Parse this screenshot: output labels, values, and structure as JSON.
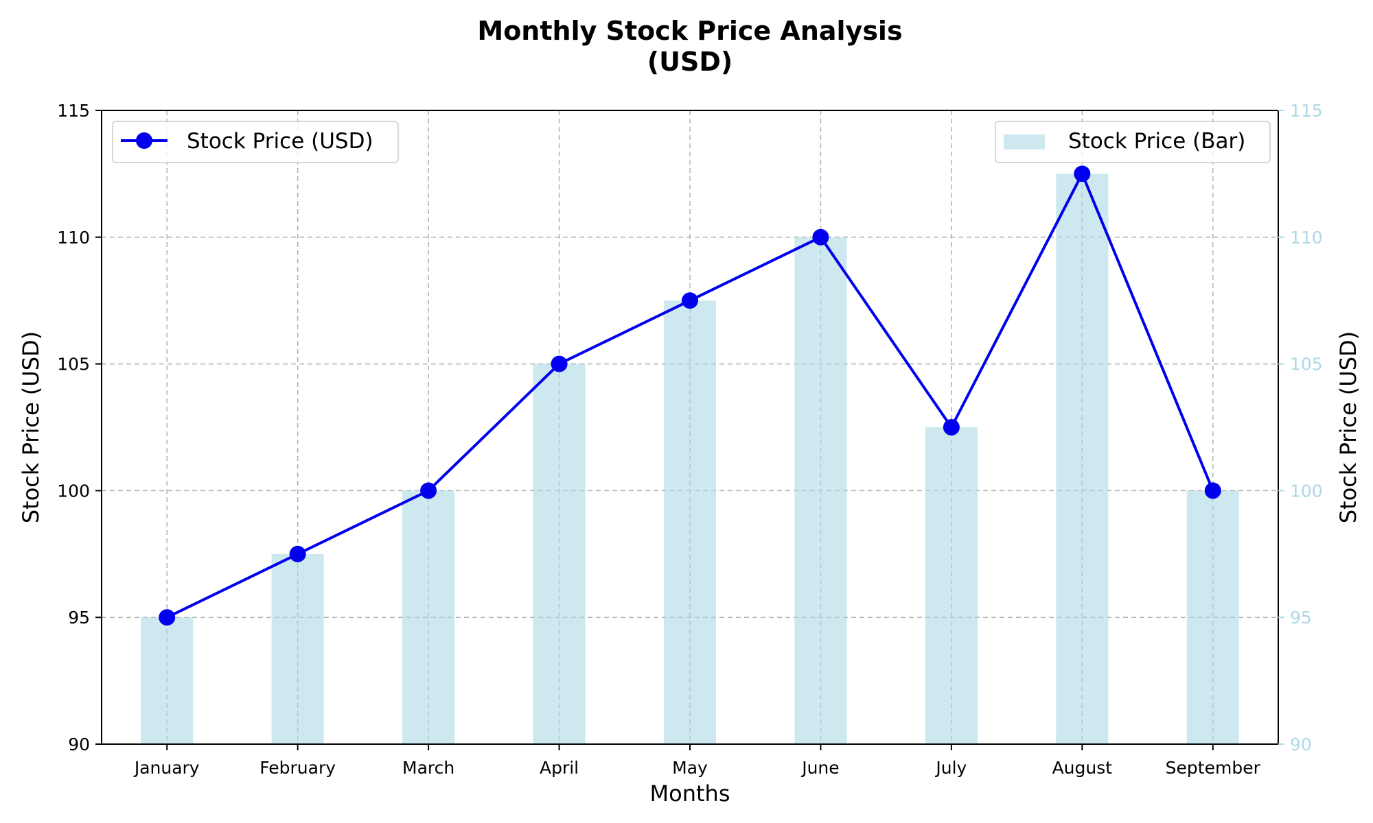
{
  "chart_data": {
    "type": "bar+line",
    "title_lines": [
      "Monthly Stock Price Analysis",
      "(USD)"
    ],
    "xlabel": "Months",
    "ylabel": "Stock Price (USD)",
    "ylabel_right": "Stock Price (USD)",
    "categories": [
      "January",
      "February",
      "March",
      "April",
      "May",
      "June",
      "July",
      "August",
      "September"
    ],
    "ylim": [
      90,
      115
    ],
    "yticks": [
      90,
      95,
      100,
      105,
      110,
      115
    ],
    "grid": true,
    "series": [
      {
        "name": "Stock Price (USD)",
        "kind": "line",
        "color": "#0000ee",
        "marker": "circle",
        "values": [
          95,
          97.5,
          100,
          105,
          107.5,
          110,
          102.5,
          112.5,
          100
        ]
      },
      {
        "name": "Stock Price (Bar)",
        "kind": "bar",
        "color": "#add8e6",
        "values": [
          95,
          97.5,
          100,
          105,
          107.5,
          110,
          102.5,
          112.5,
          100
        ]
      }
    ],
    "legends": {
      "line": "top-left",
      "bar": "top-right"
    },
    "right_axis_color": "#add8e6"
  }
}
